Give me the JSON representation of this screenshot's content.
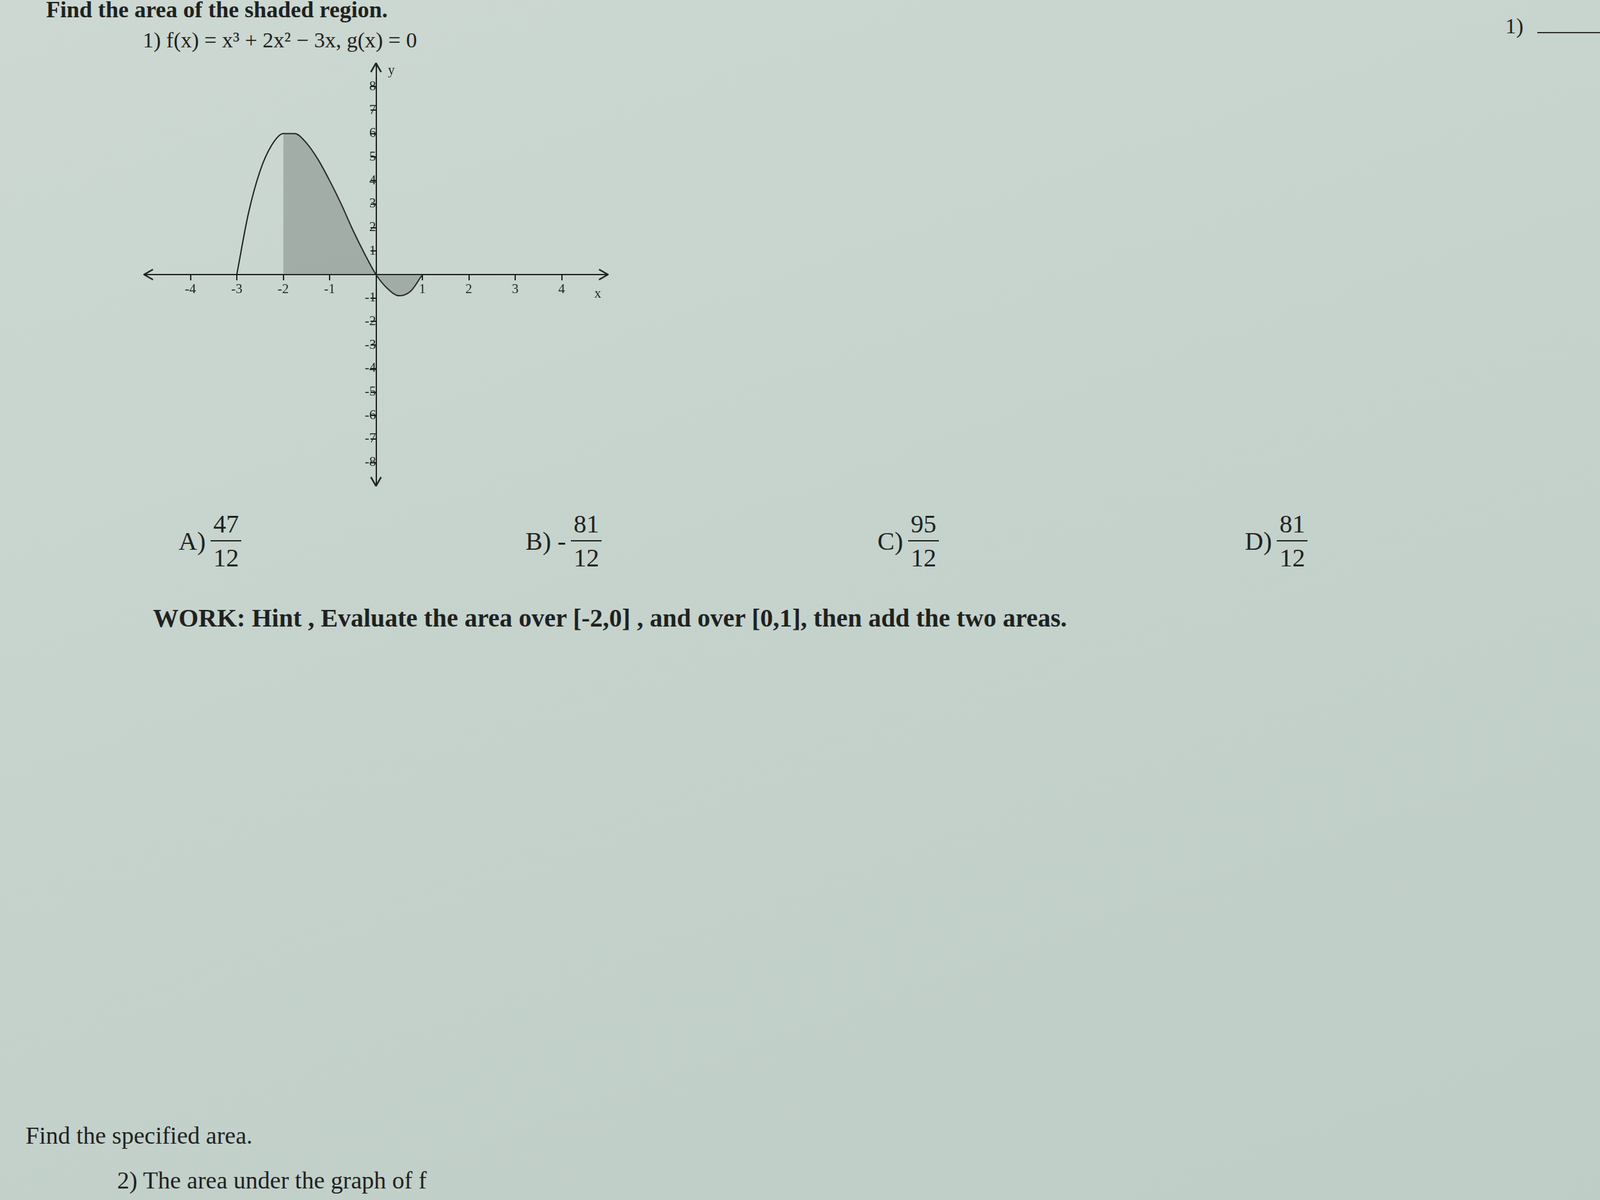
{
  "header": {
    "title": "Find the area of the shaded region.",
    "answer_blank": "1)"
  },
  "problem": {
    "number": "1)",
    "statement": "f(x) = x³ + 2x² − 3x,  g(x) = 0"
  },
  "chart_data": {
    "type": "line",
    "x_label": "x",
    "y_label": "y",
    "x": [
      -3,
      -2.75,
      -2.5,
      -2.25,
      -2,
      -1.75,
      -1.5,
      -1.25,
      -1,
      -0.75,
      -0.5,
      -0.25,
      0,
      0.25,
      0.5,
      0.75,
      1
    ],
    "values": [
      0,
      2.6,
      4.4,
      5.5,
      6,
      6,
      5.6,
      4.9,
      4,
      3,
      1.9,
      0.9,
      0,
      -0.6,
      -0.9,
      -0.7,
      0
    ],
    "shaded_interval": [
      -2,
      1
    ],
    "color": "#1e2220",
    "xlim": [
      -5,
      5
    ],
    "ylim": [
      -9,
      9
    ],
    "xticks": [
      -4,
      -3,
      -2,
      -1,
      1,
      2,
      3,
      4
    ],
    "yticks": [
      -8,
      -7,
      -6,
      -5,
      -4,
      -3,
      -2,
      -1,
      1,
      2,
      3,
      4,
      5,
      6,
      7,
      8
    ],
    "grid": false
  },
  "choices": [
    {
      "letter": "A)",
      "sign": "",
      "numerator": 47,
      "denominator": 12
    },
    {
      "letter": "B)",
      "sign": "-",
      "numerator": 81,
      "denominator": 12
    },
    {
      "letter": "C)",
      "sign": "",
      "numerator": 95,
      "denominator": 12
    },
    {
      "letter": "D)",
      "sign": "",
      "numerator": 81,
      "denominator": 12
    }
  ],
  "hint": "WORK: Hint , Evaluate the area over [-2,0] , and over [0,1], then add the two areas.",
  "section": {
    "title": "Find the specified area.",
    "next_problem": "2) The area under the graph of f"
  }
}
